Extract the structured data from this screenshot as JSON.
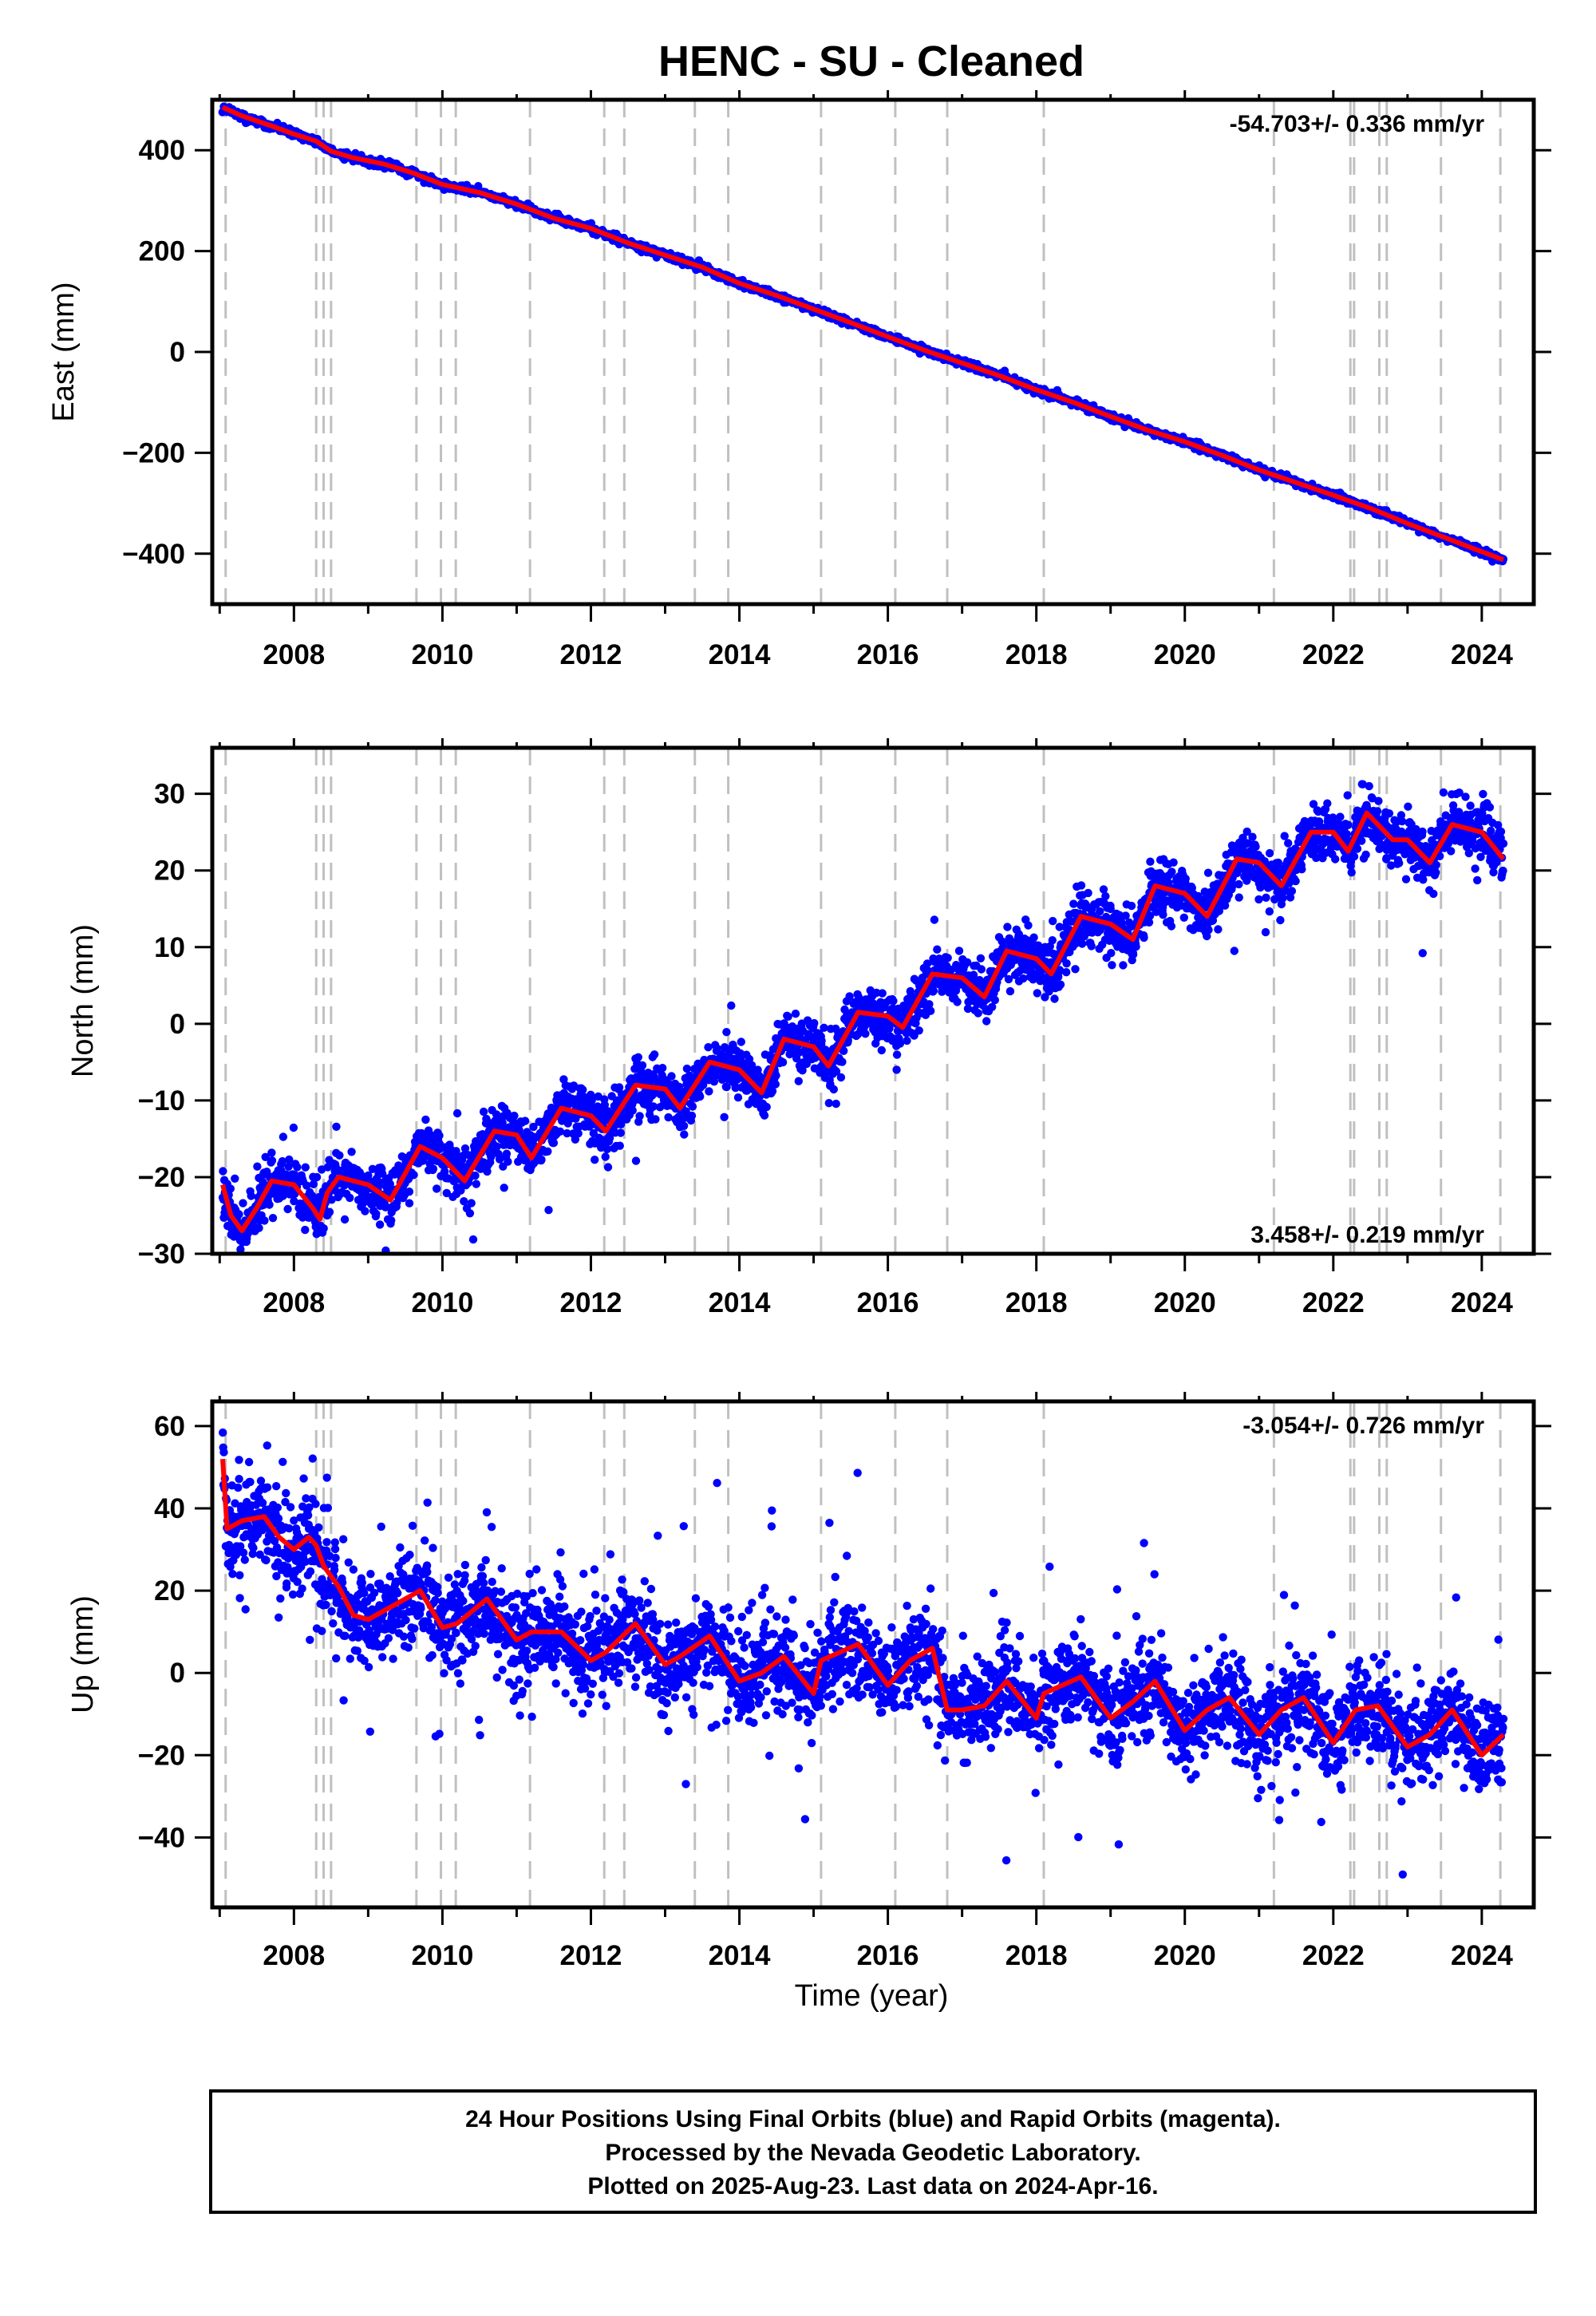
{
  "chart_data": {
    "title": "HENC  - SU - Cleaned",
    "type": "scatter",
    "x_tick_labels": [
      "2008",
      "2010",
      "2012",
      "2014",
      "2016",
      "2018",
      "2020",
      "2022",
      "2024"
    ],
    "xlim": [
      2006.9,
      2024.7
    ],
    "xlabel": "Time (year)",
    "event_lines": [
      2007.08,
      2008.3,
      2008.4,
      2008.5,
      2009.65,
      2009.98,
      2010.18,
      2011.18,
      2012.18,
      2012.45,
      2013.4,
      2013.85,
      2015.1,
      2016.1,
      2016.8,
      2018.1,
      2021.2,
      2022.23,
      2022.28,
      2022.62,
      2022.72,
      2023.45,
      2024.25
    ],
    "series_colors": {
      "final_orbits": "#0000ff",
      "model_fit": "#ff0000",
      "event_lines": "#c0c0c0"
    },
    "panels": [
      {
        "ylabel": "East (mm)",
        "ylim": [
          -500,
          500
        ],
        "y_ticks": [
          -400,
          -200,
          0,
          200,
          400
        ],
        "y_tick_labels": [
          "−400",
          "−200",
          "0",
          "200",
          "400"
        ],
        "rate_label": "-54.703+/- 0.336 mm/yr",
        "rate_position": "top-right",
        "fit_points": [
          [
            2007.04,
            485
          ],
          [
            2007.3,
            468
          ],
          [
            2007.7,
            448
          ],
          [
            2008.0,
            432
          ],
          [
            2008.3,
            418
          ],
          [
            2008.5,
            398
          ],
          [
            2008.8,
            385
          ],
          [
            2009.2,
            373
          ],
          [
            2009.6,
            355
          ],
          [
            2010.0,
            332
          ],
          [
            2010.5,
            316
          ],
          [
            2011.0,
            293
          ],
          [
            2011.5,
            265
          ],
          [
            2012.0,
            245
          ],
          [
            2012.5,
            216
          ],
          [
            2013.0,
            192
          ],
          [
            2013.5,
            168
          ],
          [
            2014.0,
            136
          ],
          [
            2014.5,
            112
          ],
          [
            2015.0,
            85
          ],
          [
            2015.5,
            58
          ],
          [
            2016.0,
            30
          ],
          [
            2016.5,
            3
          ],
          [
            2017.0,
            -22
          ],
          [
            2017.5,
            -47
          ],
          [
            2018.0,
            -75
          ],
          [
            2018.5,
            -100
          ],
          [
            2019.0,
            -128
          ],
          [
            2019.5,
            -155
          ],
          [
            2020.0,
            -178
          ],
          [
            2020.5,
            -205
          ],
          [
            2021.0,
            -234
          ],
          [
            2021.5,
            -259
          ],
          [
            2022.0,
            -284
          ],
          [
            2022.5,
            -310
          ],
          [
            2023.0,
            -340
          ],
          [
            2023.5,
            -368
          ],
          [
            2024.0,
            -396
          ],
          [
            2024.29,
            -412
          ]
        ],
        "scatter": {
          "start": 2007.04,
          "end": 2024.29,
          "count": 2200,
          "noise": 3.5,
          "outlier_rate": 0.01,
          "outlier_scale": 2.0
        }
      },
      {
        "ylabel": "North (mm)",
        "ylim": [
          -30,
          36
        ],
        "y_ticks": [
          -30,
          -20,
          -10,
          0,
          10,
          20,
          30
        ],
        "y_tick_labels": [
          "−30",
          "−20",
          "−10",
          "0",
          "10",
          "20",
          "30"
        ],
        "rate_label": "3.458+/- 0.219 mm/yr",
        "rate_position": "bottom-right",
        "fit_points": [
          [
            2007.04,
            -21
          ],
          [
            2007.15,
            -25
          ],
          [
            2007.3,
            -27
          ],
          [
            2007.5,
            -24
          ],
          [
            2007.7,
            -20.5
          ],
          [
            2008.0,
            -21
          ],
          [
            2008.25,
            -24
          ],
          [
            2008.35,
            -25.5
          ],
          [
            2008.45,
            -22
          ],
          [
            2008.6,
            -20
          ],
          [
            2009.0,
            -21
          ],
          [
            2009.3,
            -23
          ],
          [
            2009.7,
            -16
          ],
          [
            2010.0,
            -17.5
          ],
          [
            2010.3,
            -20.5
          ],
          [
            2010.7,
            -14
          ],
          [
            2011.0,
            -14.5
          ],
          [
            2011.2,
            -17.5
          ],
          [
            2011.6,
            -11
          ],
          [
            2012.0,
            -12
          ],
          [
            2012.2,
            -14
          ],
          [
            2012.6,
            -8
          ],
          [
            2013.0,
            -8.5
          ],
          [
            2013.2,
            -11
          ],
          [
            2013.6,
            -5
          ],
          [
            2014.0,
            -6
          ],
          [
            2014.3,
            -9
          ],
          [
            2014.6,
            -2
          ],
          [
            2015.0,
            -3
          ],
          [
            2015.2,
            -5.5
          ],
          [
            2015.6,
            1.5
          ],
          [
            2016.0,
            1
          ],
          [
            2016.2,
            -0.5
          ],
          [
            2016.6,
            6.5
          ],
          [
            2017.0,
            6
          ],
          [
            2017.3,
            3.5
          ],
          [
            2017.6,
            9.5
          ],
          [
            2018.0,
            8.5
          ],
          [
            2018.2,
            6.5
          ],
          [
            2018.6,
            14
          ],
          [
            2019.0,
            13
          ],
          [
            2019.3,
            11
          ],
          [
            2019.6,
            18
          ],
          [
            2020.0,
            17
          ],
          [
            2020.3,
            14
          ],
          [
            2020.7,
            21.5
          ],
          [
            2021.0,
            21
          ],
          [
            2021.3,
            18
          ],
          [
            2021.7,
            25
          ],
          [
            2022.0,
            25
          ],
          [
            2022.2,
            22.5
          ],
          [
            2022.45,
            27.5
          ],
          [
            2022.6,
            26
          ],
          [
            2022.8,
            24
          ],
          [
            2023.0,
            24
          ],
          [
            2023.3,
            21
          ],
          [
            2023.6,
            26
          ],
          [
            2024.0,
            25
          ],
          [
            2024.29,
            21.5
          ]
        ],
        "scatter": {
          "start": 2007.04,
          "end": 2024.29,
          "count": 3400,
          "noise": 1.7,
          "outlier_rate": 0.03,
          "outlier_scale": 2.6
        }
      },
      {
        "ylabel": "Up (mm)",
        "ylim": [
          -57,
          66
        ],
        "y_ticks": [
          -40,
          -20,
          0,
          20,
          40,
          60
        ],
        "y_tick_labels": [
          "−40",
          "−20",
          "0",
          "20",
          "40",
          "60"
        ],
        "rate_label": "-3.054+/- 0.726 mm/yr",
        "rate_position": "top-right",
        "fit_points": [
          [
            2007.04,
            52
          ],
          [
            2007.1,
            35
          ],
          [
            2007.3,
            37
          ],
          [
            2007.6,
            38
          ],
          [
            2007.8,
            33
          ],
          [
            2008.0,
            30
          ],
          [
            2008.2,
            33
          ],
          [
            2008.3,
            31
          ],
          [
            2008.4,
            26
          ],
          [
            2008.6,
            21
          ],
          [
            2008.8,
            14
          ],
          [
            2009.0,
            13
          ],
          [
            2009.4,
            17
          ],
          [
            2009.7,
            20
          ],
          [
            2010.0,
            11
          ],
          [
            2010.2,
            12
          ],
          [
            2010.6,
            18
          ],
          [
            2011.0,
            8
          ],
          [
            2011.2,
            10
          ],
          [
            2011.6,
            10
          ],
          [
            2012.0,
            3
          ],
          [
            2012.2,
            5
          ],
          [
            2012.6,
            12
          ],
          [
            2013.0,
            2
          ],
          [
            2013.2,
            4
          ],
          [
            2013.6,
            9
          ],
          [
            2014.0,
            -2
          ],
          [
            2014.3,
            0
          ],
          [
            2014.6,
            4
          ],
          [
            2015.0,
            -5
          ],
          [
            2015.1,
            3
          ],
          [
            2015.6,
            7
          ],
          [
            2016.0,
            -3
          ],
          [
            2016.3,
            3
          ],
          [
            2016.6,
            6
          ],
          [
            2016.8,
            -9
          ],
          [
            2017.0,
            -9
          ],
          [
            2017.3,
            -8
          ],
          [
            2017.6,
            -2
          ],
          [
            2018.0,
            -11
          ],
          [
            2018.1,
            -5
          ],
          [
            2018.6,
            -1
          ],
          [
            2019.0,
            -11
          ],
          [
            2019.3,
            -7
          ],
          [
            2019.6,
            -2
          ],
          [
            2020.0,
            -14
          ],
          [
            2020.3,
            -9
          ],
          [
            2020.6,
            -6
          ],
          [
            2021.0,
            -15
          ],
          [
            2021.3,
            -9
          ],
          [
            2021.6,
            -6
          ],
          [
            2022.0,
            -17
          ],
          [
            2022.3,
            -9
          ],
          [
            2022.6,
            -8
          ],
          [
            2023.0,
            -18
          ],
          [
            2023.3,
            -15
          ],
          [
            2023.6,
            -9
          ],
          [
            2024.0,
            -20
          ],
          [
            2024.29,
            -15
          ]
        ],
        "scatter": {
          "start": 2007.04,
          "end": 2024.29,
          "count": 3400,
          "noise": 5.5,
          "outlier_rate": 0.05,
          "outlier_scale": 3.2
        }
      }
    ]
  },
  "footer": {
    "line1": "24 Hour Positions Using Final Orbits (blue) and Rapid Orbits (magenta).",
    "line2": "Processed by the Nevada Geodetic Laboratory.",
    "line3": "Plotted on 2025-Aug-23. Last data on 2024-Apr-16."
  }
}
